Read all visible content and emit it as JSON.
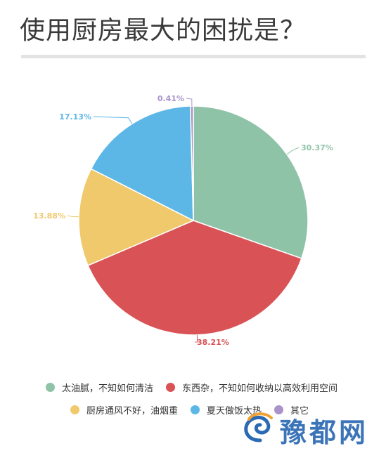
{
  "page": {
    "title": "使用厨房最大的困扰是？"
  },
  "chart_data": {
    "type": "pie",
    "title": "使用厨房最大的困扰是？",
    "slices": [
      {
        "name": "太油腻，不知如何清洁",
        "value": 30.37,
        "label": "30.37%",
        "color": "#8fc3a8"
      },
      {
        "name": "东西杂，不知如何收纳以高效利用空间",
        "value": 38.21,
        "label": "38.21%",
        "color": "#d95356"
      },
      {
        "name": "厨房通风不好，油烟重",
        "value": 13.88,
        "label": "13.88%",
        "color": "#efc96b"
      },
      {
        "name": "夏天做饭太热",
        "value": 17.13,
        "label": "17.13%",
        "color": "#5db7e6"
      },
      {
        "name": "其它",
        "value": 0.41,
        "label": "0.41%",
        "color": "#a993c9"
      }
    ],
    "legend_position": "bottom"
  },
  "watermark": {
    "text": "豫都网"
  }
}
